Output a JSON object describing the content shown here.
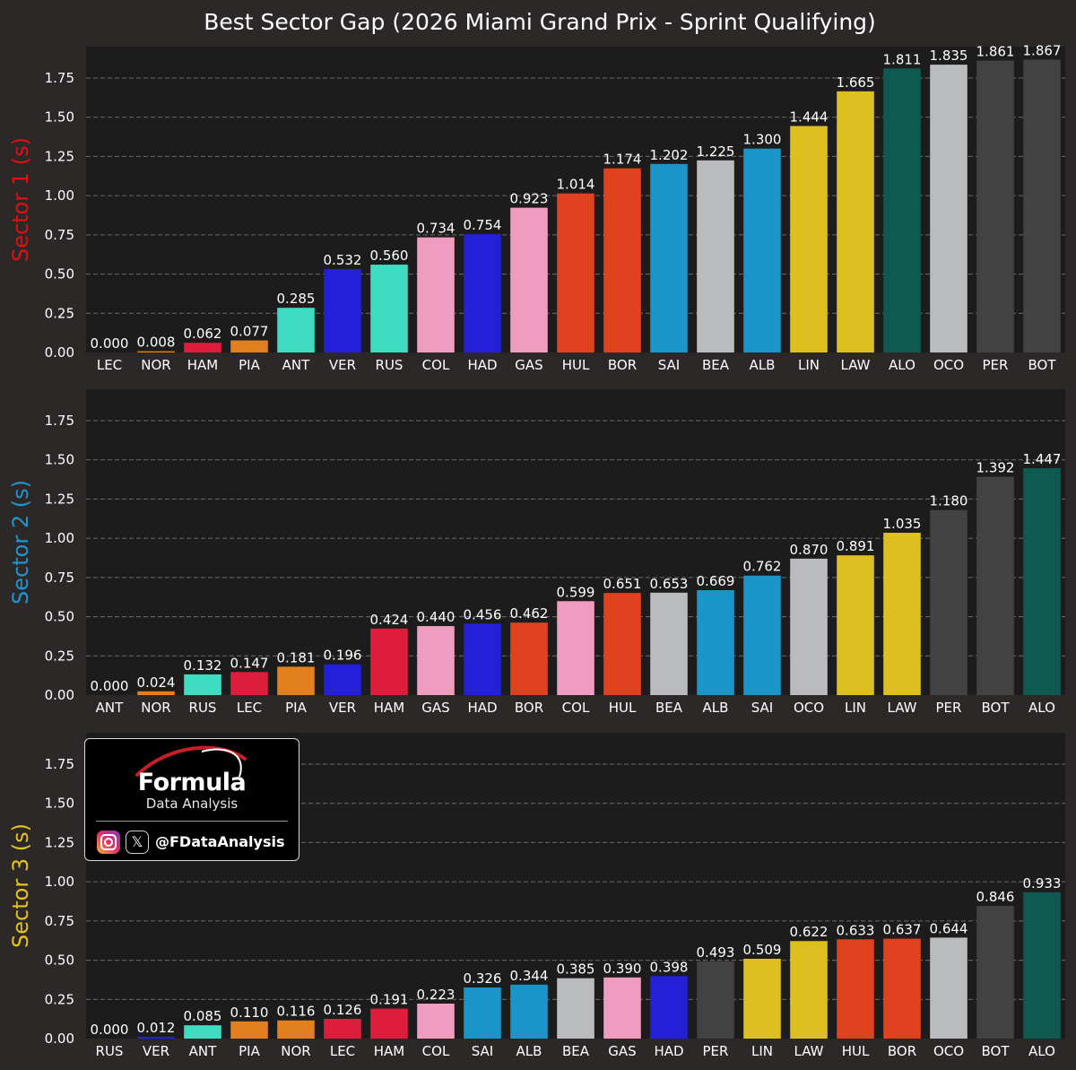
{
  "chart_data": {
    "type": "bar",
    "title": "Best Sector Gap (2026 Miami Grand Prix - Sprint Qualifying)",
    "ylim": [
      0,
      1.95
    ],
    "yticks": [
      0.0,
      0.25,
      0.5,
      0.75,
      1.0,
      1.25,
      1.5,
      1.75
    ],
    "grid": "horizontal dashed",
    "panels": [
      {
        "ylabel": "Sector 1 (s)",
        "ylabel_color": "#e01010",
        "categories": [
          "LEC",
          "NOR",
          "HAM",
          "PIA",
          "ANT",
          "VER",
          "RUS",
          "COL",
          "HAD",
          "GAS",
          "HUL",
          "BOR",
          "SAI",
          "BEA",
          "ALB",
          "LIN",
          "LAW",
          "ALO",
          "OCO",
          "PER",
          "BOT"
        ],
        "values": [
          0.0,
          0.008,
          0.062,
          0.077,
          0.285,
          0.532,
          0.56,
          0.734,
          0.754,
          0.923,
          1.014,
          1.174,
          1.202,
          1.225,
          1.3,
          1.444,
          1.665,
          1.811,
          1.835,
          1.861,
          1.867
        ],
        "labels": [
          "0.000",
          "0.008",
          "0.062",
          "0.077",
          "0.285",
          "0.532",
          "0.560",
          "0.734",
          "0.754",
          "0.923",
          "1.014",
          "1.174",
          "1.202",
          "1.225",
          "1.300",
          "1.444",
          "1.665",
          "1.811",
          "1.835",
          "1.861",
          "1.867"
        ]
      },
      {
        "ylabel": "Sector 2 (s)",
        "ylabel_color": "#1e96d2",
        "categories": [
          "ANT",
          "NOR",
          "RUS",
          "LEC",
          "PIA",
          "VER",
          "HAM",
          "GAS",
          "HAD",
          "BOR",
          "COL",
          "HUL",
          "BEA",
          "ALB",
          "SAI",
          "OCO",
          "LIN",
          "LAW",
          "PER",
          "BOT",
          "ALO"
        ],
        "values": [
          0.0,
          0.024,
          0.132,
          0.147,
          0.181,
          0.196,
          0.424,
          0.44,
          0.456,
          0.462,
          0.599,
          0.651,
          0.653,
          0.669,
          0.762,
          0.87,
          0.891,
          1.035,
          1.18,
          1.392,
          1.447
        ],
        "labels": [
          "0.000",
          "0.024",
          "0.132",
          "0.147",
          "0.181",
          "0.196",
          "0.424",
          "0.440",
          "0.456",
          "0.462",
          "0.599",
          "0.651",
          "0.653",
          "0.669",
          "0.762",
          "0.870",
          "0.891",
          "1.035",
          "1.180",
          "1.392",
          "1.447"
        ]
      },
      {
        "ylabel": "Sector 3 (s)",
        "ylabel_color": "#e6c21e",
        "categories": [
          "RUS",
          "VER",
          "ANT",
          "PIA",
          "NOR",
          "LEC",
          "HAM",
          "COL",
          "SAI",
          "ALB",
          "BEA",
          "GAS",
          "HAD",
          "PER",
          "LIN",
          "LAW",
          "HUL",
          "BOR",
          "OCO",
          "BOT",
          "ALO"
        ],
        "values": [
          0.0,
          0.012,
          0.085,
          0.11,
          0.116,
          0.126,
          0.191,
          0.223,
          0.326,
          0.344,
          0.385,
          0.39,
          0.398,
          0.493,
          0.509,
          0.622,
          0.633,
          0.637,
          0.644,
          0.846,
          0.933
        ],
        "labels": [
          "0.000",
          "0.012",
          "0.085",
          "0.110",
          "0.116",
          "0.126",
          "0.191",
          "0.223",
          "0.326",
          "0.344",
          "0.385",
          "0.390",
          "0.398",
          "0.493",
          "0.509",
          "0.622",
          "0.633",
          "0.637",
          "0.644",
          "0.846",
          "0.933"
        ]
      }
    ],
    "team_colors": {
      "LEC": "#dc1e3c",
      "HAM": "#dc1e3c",
      "NOR": "#e2801f",
      "PIA": "#e2801f",
      "ANT": "#3fdbc3",
      "RUS": "#3fdbc3",
      "VER": "#2420d8",
      "HAD": "#2420d8",
      "COL": "#f09cc0",
      "GAS": "#f09cc0",
      "HUL": "#e04220",
      "BOR": "#e04220",
      "SAI": "#1b95c7",
      "ALB": "#1b95c7",
      "BEA": "#b9bbbe",
      "OCO": "#b9bbbe",
      "LIN": "#ddc020",
      "LAW": "#ddc020",
      "ALO": "#0e5a50",
      "PER": "#424242",
      "BOT": "#424242"
    }
  },
  "branding": {
    "logo_name": "Formula",
    "logo_sub": "Data Analysis",
    "x_glyph": "𝕏",
    "handle": "@FDataAnalysis",
    "icons": [
      "instagram-icon",
      "x-icon"
    ]
  }
}
